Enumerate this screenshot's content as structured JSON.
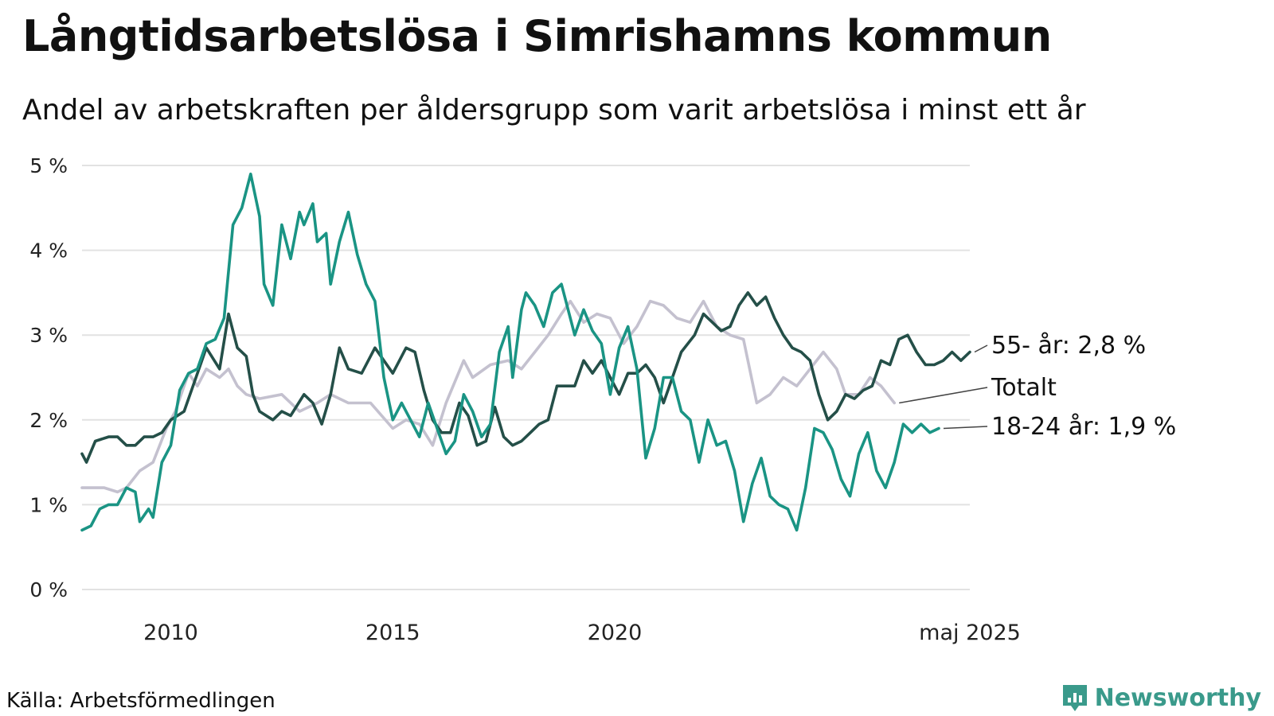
{
  "title": "Långtidsarbetslösa i Simrishamns kommun",
  "subtitle": "Andel av arbetskraften per åldersgrupp som varit arbetslösa i minst ett år",
  "source": "Källa: Arbetsförmedlingen",
  "brand": "Newsworthy",
  "colors": {
    "youth": "#1a9484",
    "senior": "#244f48",
    "total": "#c4c1cf",
    "grid": "#e2e2e2",
    "brand": "#3a9a8b"
  },
  "chart_data": {
    "type": "line",
    "title": "Långtidsarbetslösa i Simrishamns kommun",
    "subtitle": "Andel av arbetskraften per åldersgrupp som varit arbetslösa i minst ett år",
    "xlabel": "",
    "ylabel": "",
    "x_ticks": [
      "2010",
      "2015",
      "2020",
      "maj 2025"
    ],
    "y_ticks": [
      "0 %",
      "1 %",
      "2 %",
      "3 %",
      "4 %",
      "5 %"
    ],
    "ylim": [
      0,
      5
    ],
    "x_start": "2008",
    "x_end": "2025-05",
    "grid": "horizontal",
    "legend": "end labels at right",
    "series": [
      {
        "name": "Totalt",
        "end_label": "Totalt",
        "key": "total",
        "points": [
          [
            2008.0,
            1.2
          ],
          [
            2008.5,
            1.2
          ],
          [
            2008.8,
            1.15
          ],
          [
            2009.0,
            1.2
          ],
          [
            2009.3,
            1.4
          ],
          [
            2009.6,
            1.5
          ],
          [
            2009.9,
            1.9
          ],
          [
            2010.1,
            2.1
          ],
          [
            2010.4,
            2.55
          ],
          [
            2010.6,
            2.4
          ],
          [
            2010.8,
            2.6
          ],
          [
            2011.1,
            2.5
          ],
          [
            2011.3,
            2.6
          ],
          [
            2011.5,
            2.4
          ],
          [
            2011.7,
            2.3
          ],
          [
            2012.0,
            2.25
          ],
          [
            2012.5,
            2.3
          ],
          [
            2012.9,
            2.1
          ],
          [
            2013.3,
            2.2
          ],
          [
            2013.6,
            2.3
          ],
          [
            2014.0,
            2.2
          ],
          [
            2014.5,
            2.2
          ],
          [
            2015.0,
            1.9
          ],
          [
            2015.3,
            2.0
          ],
          [
            2015.6,
            1.95
          ],
          [
            2015.9,
            1.7
          ],
          [
            2016.2,
            2.2
          ],
          [
            2016.6,
            2.7
          ],
          [
            2016.8,
            2.5
          ],
          [
            2017.2,
            2.65
          ],
          [
            2017.6,
            2.7
          ],
          [
            2017.9,
            2.6
          ],
          [
            2018.2,
            2.8
          ],
          [
            2018.5,
            3.0
          ],
          [
            2018.8,
            3.25
          ],
          [
            2019.0,
            3.4
          ],
          [
            2019.3,
            3.15
          ],
          [
            2019.6,
            3.25
          ],
          [
            2019.9,
            3.2
          ],
          [
            2020.2,
            2.9
          ],
          [
            2020.5,
            3.1
          ],
          [
            2020.8,
            3.4
          ],
          [
            2021.1,
            3.35
          ],
          [
            2021.4,
            3.2
          ],
          [
            2021.7,
            3.15
          ],
          [
            2022.0,
            3.4
          ],
          [
            2022.3,
            3.1
          ],
          [
            2022.6,
            3.0
          ],
          [
            2022.9,
            2.95
          ],
          [
            2023.2,
            2.2
          ],
          [
            2023.5,
            2.3
          ],
          [
            2023.8,
            2.5
          ],
          [
            2024.1,
            2.4
          ],
          [
            2024.4,
            2.6
          ],
          [
            2024.7,
            2.8
          ],
          [
            2025.0,
            2.6
          ],
          [
            2025.2,
            2.3
          ],
          [
            2025.5,
            2.3
          ],
          [
            2025.75,
            2.5
          ],
          [
            2026.0,
            2.4
          ],
          [
            2026.3,
            2.2
          ]
        ]
      },
      {
        "name": "55- år",
        "end_label": "55- år: 2,8 %",
        "key": "senior",
        "points": [
          [
            2008.0,
            1.6
          ],
          [
            2008.1,
            1.5
          ],
          [
            2008.3,
            1.75
          ],
          [
            2008.6,
            1.8
          ],
          [
            2008.8,
            1.8
          ],
          [
            2009.0,
            1.7
          ],
          [
            2009.2,
            1.7
          ],
          [
            2009.4,
            1.8
          ],
          [
            2009.6,
            1.8
          ],
          [
            2009.8,
            1.85
          ],
          [
            2010.0,
            2.0
          ],
          [
            2010.3,
            2.1
          ],
          [
            2010.5,
            2.4
          ],
          [
            2010.8,
            2.85
          ],
          [
            2011.1,
            2.6
          ],
          [
            2011.3,
            3.25
          ],
          [
            2011.5,
            2.85
          ],
          [
            2011.7,
            2.75
          ],
          [
            2011.85,
            2.3
          ],
          [
            2012.0,
            2.1
          ],
          [
            2012.3,
            2.0
          ],
          [
            2012.5,
            2.1
          ],
          [
            2012.7,
            2.05
          ],
          [
            2013.0,
            2.3
          ],
          [
            2013.2,
            2.2
          ],
          [
            2013.4,
            1.95
          ],
          [
            2013.6,
            2.3
          ],
          [
            2013.8,
            2.85
          ],
          [
            2014.0,
            2.6
          ],
          [
            2014.3,
            2.55
          ],
          [
            2014.6,
            2.85
          ],
          [
            2014.8,
            2.7
          ],
          [
            2015.0,
            2.55
          ],
          [
            2015.3,
            2.85
          ],
          [
            2015.5,
            2.8
          ],
          [
            2015.7,
            2.35
          ],
          [
            2015.9,
            2.0
          ],
          [
            2016.1,
            1.85
          ],
          [
            2016.3,
            1.85
          ],
          [
            2016.5,
            2.2
          ],
          [
            2016.7,
            2.05
          ],
          [
            2016.9,
            1.7
          ],
          [
            2017.1,
            1.75
          ],
          [
            2017.3,
            2.15
          ],
          [
            2017.5,
            1.8
          ],
          [
            2017.7,
            1.7
          ],
          [
            2017.9,
            1.75
          ],
          [
            2018.1,
            1.85
          ],
          [
            2018.3,
            1.95
          ],
          [
            2018.5,
            2.0
          ],
          [
            2018.7,
            2.4
          ],
          [
            2018.9,
            2.4
          ],
          [
            2019.1,
            2.4
          ],
          [
            2019.3,
            2.7
          ],
          [
            2019.5,
            2.55
          ],
          [
            2019.7,
            2.7
          ],
          [
            2019.9,
            2.5
          ],
          [
            2020.1,
            2.3
          ],
          [
            2020.3,
            2.55
          ],
          [
            2020.5,
            2.55
          ],
          [
            2020.7,
            2.65
          ],
          [
            2020.9,
            2.5
          ],
          [
            2021.1,
            2.2
          ],
          [
            2021.3,
            2.5
          ],
          [
            2021.5,
            2.8
          ],
          [
            2021.8,
            3.0
          ],
          [
            2022.0,
            3.25
          ],
          [
            2022.2,
            3.15
          ],
          [
            2022.4,
            3.05
          ],
          [
            2022.6,
            3.1
          ],
          [
            2022.8,
            3.35
          ],
          [
            2023.0,
            3.5
          ],
          [
            2023.2,
            3.35
          ],
          [
            2023.4,
            3.45
          ],
          [
            2023.6,
            3.2
          ],
          [
            2023.8,
            3.0
          ],
          [
            2024.0,
            2.85
          ],
          [
            2024.2,
            2.8
          ],
          [
            2024.4,
            2.7
          ],
          [
            2024.6,
            2.3
          ],
          [
            2024.8,
            2.0
          ],
          [
            2025.0,
            2.1
          ],
          [
            2025.2,
            2.3
          ],
          [
            2025.4,
            2.25
          ],
          [
            2025.6,
            2.35
          ],
          [
            2025.8,
            2.4
          ],
          [
            2026.0,
            2.7
          ],
          [
            2026.2,
            2.65
          ],
          [
            2026.4,
            2.95
          ],
          [
            2026.6,
            3.0
          ],
          [
            2026.8,
            2.8
          ],
          [
            2027.0,
            2.65
          ],
          [
            2027.2,
            2.65
          ],
          [
            2027.4,
            2.7
          ],
          [
            2027.6,
            2.8
          ],
          [
            2027.8,
            2.7
          ],
          [
            2028.0,
            2.8
          ]
        ]
      },
      {
        "name": "18-24 år",
        "end_label": "18-24 år: 1,9 %",
        "key": "youth",
        "points": [
          [
            2008.0,
            0.7
          ],
          [
            2008.2,
            0.75
          ],
          [
            2008.4,
            0.95
          ],
          [
            2008.6,
            1.0
          ],
          [
            2008.8,
            1.0
          ],
          [
            2009.0,
            1.2
          ],
          [
            2009.2,
            1.15
          ],
          [
            2009.3,
            0.8
          ],
          [
            2009.5,
            0.95
          ],
          [
            2009.6,
            0.85
          ],
          [
            2009.8,
            1.5
          ],
          [
            2010.0,
            1.7
          ],
          [
            2010.2,
            2.35
          ],
          [
            2010.4,
            2.55
          ],
          [
            2010.6,
            2.6
          ],
          [
            2010.8,
            2.9
          ],
          [
            2011.0,
            2.95
          ],
          [
            2011.2,
            3.2
          ],
          [
            2011.4,
            4.3
          ],
          [
            2011.6,
            4.5
          ],
          [
            2011.8,
            4.9
          ],
          [
            2012.0,
            4.4
          ],
          [
            2012.1,
            3.6
          ],
          [
            2012.3,
            3.35
          ],
          [
            2012.5,
            4.3
          ],
          [
            2012.7,
            3.9
          ],
          [
            2012.9,
            4.45
          ],
          [
            2013.0,
            4.3
          ],
          [
            2013.2,
            4.55
          ],
          [
            2013.3,
            4.1
          ],
          [
            2013.5,
            4.2
          ],
          [
            2013.6,
            3.6
          ],
          [
            2013.8,
            4.1
          ],
          [
            2014.0,
            4.45
          ],
          [
            2014.2,
            3.95
          ],
          [
            2014.4,
            3.6
          ],
          [
            2014.6,
            3.4
          ],
          [
            2014.8,
            2.5
          ],
          [
            2015.0,
            2.0
          ],
          [
            2015.2,
            2.2
          ],
          [
            2015.4,
            2.0
          ],
          [
            2015.6,
            1.8
          ],
          [
            2015.8,
            2.2
          ],
          [
            2016.0,
            1.9
          ],
          [
            2016.2,
            1.6
          ],
          [
            2016.4,
            1.75
          ],
          [
            2016.6,
            2.3
          ],
          [
            2016.8,
            2.1
          ],
          [
            2017.0,
            1.8
          ],
          [
            2017.2,
            1.95
          ],
          [
            2017.4,
            2.8
          ],
          [
            2017.6,
            3.1
          ],
          [
            2017.7,
            2.5
          ],
          [
            2017.9,
            3.3
          ],
          [
            2018.0,
            3.5
          ],
          [
            2018.2,
            3.35
          ],
          [
            2018.4,
            3.1
          ],
          [
            2018.6,
            3.5
          ],
          [
            2018.8,
            3.6
          ],
          [
            2018.9,
            3.4
          ],
          [
            2019.1,
            3.0
          ],
          [
            2019.3,
            3.3
          ],
          [
            2019.5,
            3.05
          ],
          [
            2019.7,
            2.9
          ],
          [
            2019.9,
            2.3
          ],
          [
            2020.1,
            2.85
          ],
          [
            2020.3,
            3.1
          ],
          [
            2020.5,
            2.6
          ],
          [
            2020.7,
            1.55
          ],
          [
            2020.9,
            1.9
          ],
          [
            2021.1,
            2.5
          ],
          [
            2021.3,
            2.5
          ],
          [
            2021.5,
            2.1
          ],
          [
            2021.7,
            2.0
          ],
          [
            2021.9,
            1.5
          ],
          [
            2022.1,
            2.0
          ],
          [
            2022.3,
            1.7
          ],
          [
            2022.5,
            1.75
          ],
          [
            2022.7,
            1.4
          ],
          [
            2022.9,
            0.8
          ],
          [
            2023.1,
            1.25
          ],
          [
            2023.3,
            1.55
          ],
          [
            2023.5,
            1.1
          ],
          [
            2023.7,
            1.0
          ],
          [
            2023.9,
            0.95
          ],
          [
            2024.1,
            0.7
          ],
          [
            2024.3,
            1.2
          ],
          [
            2024.5,
            1.9
          ],
          [
            2024.7,
            1.85
          ],
          [
            2024.9,
            1.65
          ],
          [
            2025.1,
            1.3
          ],
          [
            2025.3,
            1.1
          ],
          [
            2025.5,
            1.6
          ],
          [
            2025.7,
            1.85
          ],
          [
            2025.9,
            1.4
          ],
          [
            2026.1,
            1.2
          ],
          [
            2026.3,
            1.5
          ],
          [
            2026.5,
            1.95
          ],
          [
            2026.7,
            1.85
          ],
          [
            2026.9,
            1.95
          ],
          [
            2027.1,
            1.85
          ],
          [
            2027.3,
            1.9
          ]
        ]
      }
    ]
  }
}
